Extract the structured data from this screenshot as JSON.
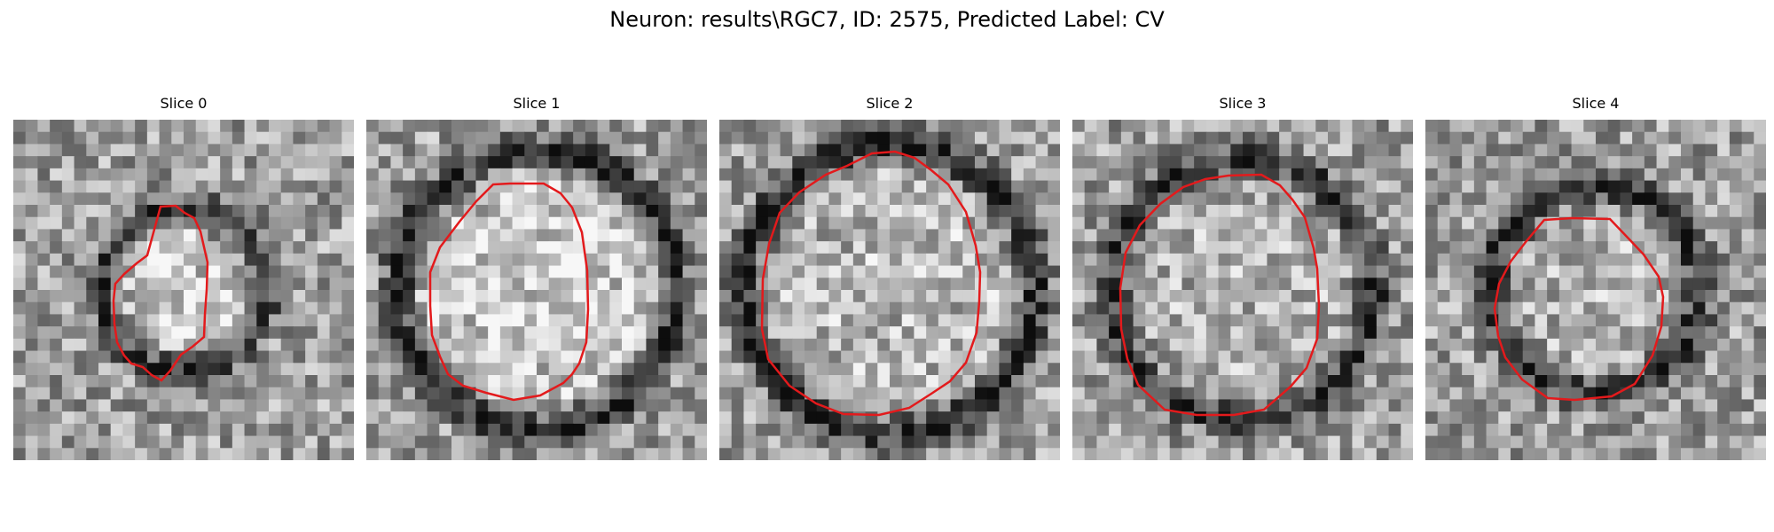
{
  "figure": {
    "title": "Neuron: results\\RGC7, ID: 2575, Predicted Label: CV"
  },
  "contour_color": "#e31a1c",
  "colormap": "gray",
  "slices": [
    {
      "title": "Slice 0",
      "seed": 11,
      "ring_radius": 0.23,
      "ring_dark": 0.45,
      "center_bright": 0.25
    },
    {
      "title": "Slice 1",
      "seed": 23,
      "ring_radius": 0.4,
      "ring_dark": 0.55,
      "center_bright": 0.22
    },
    {
      "title": "Slice 2",
      "seed": 37,
      "ring_radius": 0.42,
      "ring_dark": 0.5,
      "center_bright": 0.12
    },
    {
      "title": "Slice 3",
      "seed": 41,
      "ring_radius": 0.38,
      "ring_dark": 0.45,
      "center_bright": 0.08
    },
    {
      "title": "Slice 4",
      "seed": 59,
      "ring_radius": 0.3,
      "ring_dark": 0.45,
      "center_bright": 0.1
    }
  ]
}
